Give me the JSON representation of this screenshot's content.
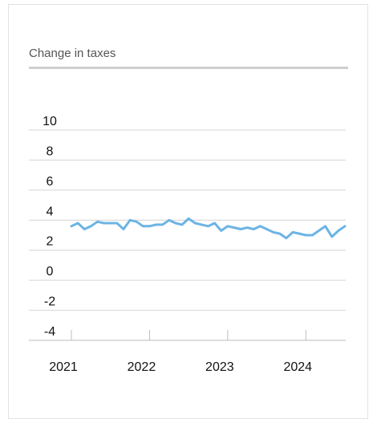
{
  "chart_data": {
    "type": "line",
    "title": "Change in taxes",
    "xlabel": "",
    "ylabel": "",
    "x_ticks": [
      "2021",
      "2022",
      "2023",
      "2024"
    ],
    "y_ticks": [
      "10",
      "8",
      "6",
      "4",
      "2",
      "0",
      "-2",
      "-4"
    ],
    "ylim": [
      -4,
      10
    ],
    "xlim": [
      "2021-01",
      "2024-07"
    ],
    "grid": true,
    "legend": "none",
    "series": [
      {
        "color": "#6cb4e4",
        "points": [
          [
            "2021-01",
            3.6
          ],
          [
            "2021-02",
            3.8
          ],
          [
            "2021-03",
            3.4
          ],
          [
            "2021-04",
            3.6
          ],
          [
            "2021-05",
            3.9
          ],
          [
            "2021-06",
            3.8
          ],
          [
            "2021-07",
            3.8
          ],
          [
            "2021-08",
            3.8
          ],
          [
            "2021-09",
            3.4
          ],
          [
            "2021-10",
            4.0
          ],
          [
            "2021-11",
            3.9
          ],
          [
            "2021-12",
            3.6
          ],
          [
            "2022-01",
            3.6
          ],
          [
            "2022-02",
            3.7
          ],
          [
            "2022-03",
            3.7
          ],
          [
            "2022-04",
            4.0
          ],
          [
            "2022-05",
            3.8
          ],
          [
            "2022-06",
            3.7
          ],
          [
            "2022-07",
            4.1
          ],
          [
            "2022-08",
            3.8
          ],
          [
            "2022-09",
            3.7
          ],
          [
            "2022-10",
            3.6
          ],
          [
            "2022-11",
            3.8
          ],
          [
            "2022-12",
            3.3
          ],
          [
            "2023-01",
            3.6
          ],
          [
            "2023-02",
            3.5
          ],
          [
            "2023-03",
            3.4
          ],
          [
            "2023-04",
            3.5
          ],
          [
            "2023-05",
            3.4
          ],
          [
            "2023-06",
            3.6
          ],
          [
            "2023-07",
            3.4
          ],
          [
            "2023-08",
            3.2
          ],
          [
            "2023-09",
            3.1
          ],
          [
            "2023-10",
            2.8
          ],
          [
            "2023-11",
            3.2
          ],
          [
            "2023-12",
            3.1
          ],
          [
            "2024-01",
            3.0
          ],
          [
            "2024-02",
            3.0
          ],
          [
            "2024-03",
            3.3
          ],
          [
            "2024-04",
            3.6
          ],
          [
            "2024-05",
            2.9
          ],
          [
            "2024-06",
            3.3
          ],
          [
            "2024-07",
            3.6
          ]
        ]
      }
    ]
  }
}
